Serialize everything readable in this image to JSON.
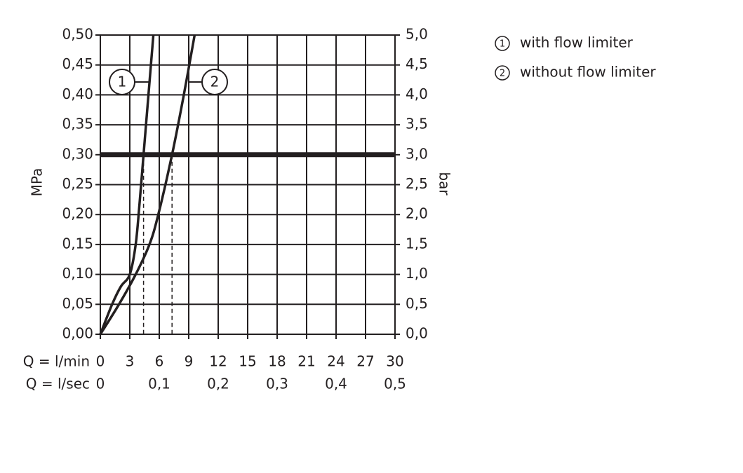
{
  "chart_data": {
    "type": "line",
    "xlabel": "Q = l/min",
    "x2label": "Q = l/sec",
    "ylabel": "MPa",
    "y2label": "bar",
    "xlim": [
      0,
      30
    ],
    "xticks": [
      0,
      3,
      6,
      9,
      12,
      15,
      18,
      21,
      24,
      27,
      30
    ],
    "x2lim": [
      0,
      0.5
    ],
    "x2ticks": [
      0,
      {
        "value": 0.1,
        "label": "0,1"
      },
      {
        "value": 0.2,
        "label": "0,2"
      },
      {
        "value": 0.3,
        "label": "0,3"
      },
      {
        "value": 0.4,
        "label": "0,4"
      },
      {
        "value": 0.5,
        "label": "0,5"
      }
    ],
    "ylim": [
      0,
      0.5
    ],
    "yticks": [
      {
        "value": 0,
        "label": "0,00"
      },
      {
        "value": 0.05,
        "label": "0,05"
      },
      {
        "value": 0.1,
        "label": "0,10"
      },
      {
        "value": 0.15,
        "label": "0,15"
      },
      {
        "value": 0.2,
        "label": "0,20"
      },
      {
        "value": 0.25,
        "label": "0,25"
      },
      {
        "value": 0.3,
        "label": "0,30"
      },
      {
        "value": 0.35,
        "label": "0,35"
      },
      {
        "value": 0.4,
        "label": "0,40"
      },
      {
        "value": 0.45,
        "label": "0,45"
      },
      {
        "value": 0.5,
        "label": "0,50"
      }
    ],
    "y2lim": [
      0,
      5
    ],
    "y2ticks": [
      {
        "value": 0,
        "label": "0,0"
      },
      {
        "value": 0.5,
        "label": "0,5"
      },
      {
        "value": 1,
        "label": "1,0"
      },
      {
        "value": 1.5,
        "label": "1,5"
      },
      {
        "value": 2,
        "label": "2,0"
      },
      {
        "value": 2.5,
        "label": "2,5"
      },
      {
        "value": 3,
        "label": "3,0"
      },
      {
        "value": 3.5,
        "label": "3,5"
      },
      {
        "value": 4,
        "label": "4,0"
      },
      {
        "value": 4.5,
        "label": "4,5"
      },
      {
        "value": 5,
        "label": "5,0"
      }
    ],
    "grid": true,
    "reference_y": 0.3,
    "reference_x": [
      4.4,
      7.3
    ],
    "series": [
      {
        "name": "with flow limiter",
        "label": "1",
        "color": "#231f20",
        "x": [
          0,
          1.2,
          2.1,
          3.0,
          3.6,
          4.0,
          4.4,
          4.8,
          5.4
        ],
        "values": [
          0,
          0.05,
          0.08,
          0.1,
          0.15,
          0.22,
          0.3,
          0.38,
          0.5
        ]
      },
      {
        "name": "without flow limiter",
        "label": "2",
        "color": "#231f20",
        "x": [
          0,
          1.9,
          3.6,
          5.0,
          5.9,
          7.3,
          8.5,
          9.6
        ],
        "values": [
          0,
          0.05,
          0.1,
          0.15,
          0.2,
          0.3,
          0.4,
          0.5
        ]
      }
    ]
  }
}
